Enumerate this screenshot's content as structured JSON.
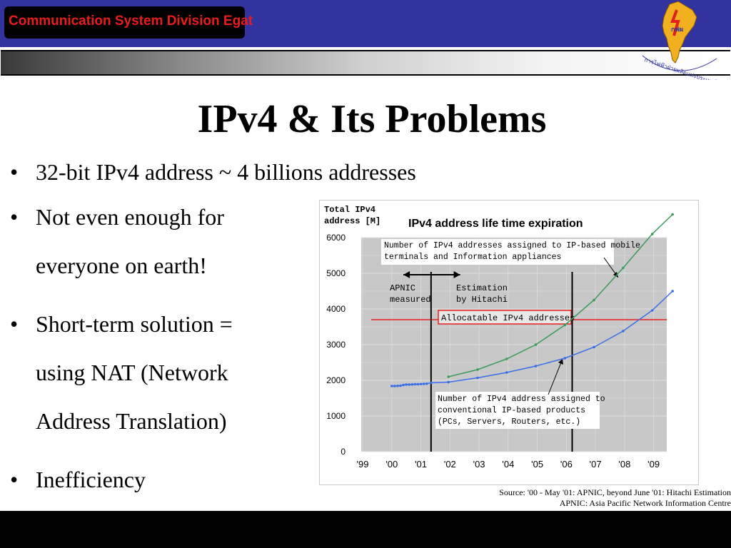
{
  "header": {
    "division": "Communication System Division Egat",
    "logo_text": "กฟผ",
    "logo_caption": "การไฟฟ้าฝ่ายผลิตแห่งประเทศไทย"
  },
  "slide": {
    "title": "IPv4 & Its Problems",
    "bullets": [
      {
        "lines": [
          "32-bit IPv4 address ~ 4 billions addresses"
        ]
      },
      {
        "lines": [
          "Not even enough for",
          "everyone on earth!"
        ]
      },
      {
        "lines": [
          "Short-term solution =",
          "using NAT (Network",
          "Address Translation)"
        ]
      },
      {
        "lines": [
          "Inefficiency"
        ]
      }
    ]
  },
  "chart_data": {
    "type": "line",
    "title": "IPv4 address life time expiration",
    "ylabel_lines": [
      "Total IPv4",
      "address [M]"
    ],
    "ylim": [
      0,
      6000
    ],
    "yticks": [
      "6000",
      "5000",
      "4000",
      "3000",
      "2000",
      "1000",
      "0"
    ],
    "categories": [
      "'99",
      "'00",
      "'01",
      "'02",
      "'03",
      "'04",
      "'05",
      "'06",
      "'07",
      "'08",
      "'09"
    ],
    "series": [
      {
        "key": "mobile",
        "color": "#3a9a5a",
        "x": [
          3.0,
          4.0,
          5.0,
          6.0,
          7.0,
          8.0,
          9.0,
          10.0,
          10.7
        ],
        "y": [
          2100,
          2300,
          2600,
          3000,
          3550,
          4250,
          5150,
          6100,
          6650
        ]
      },
      {
        "key": "conventional",
        "color": "#3a6ee8",
        "x": [
          1.05,
          1.15,
          1.25,
          1.35,
          1.45,
          1.55,
          1.65,
          1.75,
          1.85,
          1.95,
          2.05,
          2.15,
          2.25,
          2.4,
          3.0,
          4.0,
          5.0,
          6.0,
          7.0,
          8.0,
          9.0,
          10.0,
          10.7
        ],
        "y": [
          1840,
          1840,
          1845,
          1850,
          1870,
          1880,
          1880,
          1885,
          1890,
          1890,
          1895,
          1900,
          1905,
          1930,
          1950,
          2070,
          2220,
          2400,
          2620,
          2930,
          3380,
          3960,
          4500
        ]
      }
    ],
    "allocatable_level": 3700,
    "allocatable_label": "Allocatable IPv4 addresses",
    "allocatable_color": "#e82020",
    "annotation_mobile_lines": [
      "Number of IPv4 addresses assigned to IP-based mobile",
      "terminals and Information appliances"
    ],
    "annotation_conventional_lines": [
      "Number of IPv4 address assigned to",
      "conventional IP-based products",
      "(PCs, Servers, Routers, etc.)"
    ],
    "apnic_lines": [
      "APNIC",
      "measured"
    ],
    "estimation_lines": [
      "Estimation",
      "by Hitachi"
    ],
    "divider_x": [
      2.4,
      7.25
    ],
    "grid": true
  },
  "source": {
    "line1": "Source: '00 - May '01: APNIC,     beyond June '01: Hitachi Estimation",
    "line2": "APNIC: Asia Pacific Network Information Centre"
  }
}
